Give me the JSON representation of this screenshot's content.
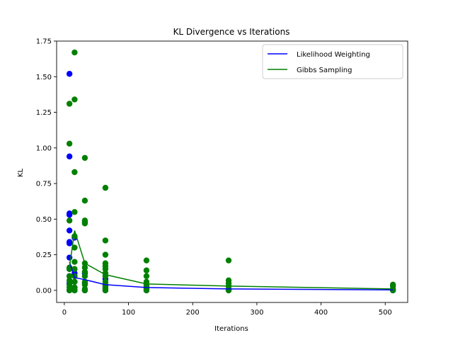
{
  "chart_data": {
    "type": "scatter",
    "title": "KL Divergence vs Iterations",
    "xlabel": "Iterations",
    "ylabel": "KL",
    "xlim": [
      -12,
      535
    ],
    "ylim": [
      -0.085,
      1.75
    ],
    "xticks": [
      0,
      100,
      200,
      300,
      400,
      500
    ],
    "xtick_labels": [
      "0",
      "100",
      "200",
      "300",
      "400",
      "500"
    ],
    "yticks": [
      0.0,
      0.25,
      0.5,
      0.75,
      1.0,
      1.25,
      1.5,
      1.75
    ],
    "ytick_labels": [
      "0.00",
      "0.25",
      "0.50",
      "0.75",
      "1.00",
      "1.25",
      "1.50",
      "1.75"
    ],
    "grid": false,
    "legend_position": "top-right",
    "series": [
      {
        "name": "Likelihood Weighting",
        "color": "#0000ff",
        "line": {
          "x": [
            8,
            16,
            32,
            64,
            128,
            256,
            512
          ],
          "y": [
            0.2,
            0.09,
            0.075,
            0.04,
            0.02,
            0.01,
            0.003
          ]
        },
        "points": {
          "x": [
            8,
            8,
            8,
            8,
            8,
            8,
            8,
            8,
            8,
            8,
            8,
            8,
            16,
            16,
            16,
            16,
            16,
            16,
            32,
            32,
            32,
            32,
            64,
            64,
            64,
            128,
            128,
            256,
            512
          ],
          "y": [
            1.52,
            0.94,
            0.54,
            0.53,
            0.42,
            0.34,
            0.33,
            0.23,
            0.15,
            0.1,
            0.05,
            0.0,
            0.37,
            0.12,
            0.1,
            0.06,
            0.02,
            0.0,
            0.48,
            0.12,
            0.05,
            0.0,
            0.08,
            0.03,
            0.0,
            0.02,
            0.0,
            0.0,
            0.0
          ]
        }
      },
      {
        "name": "Gibbs Sampling",
        "color": "#008000",
        "line": {
          "x": [
            8,
            16,
            32,
            64,
            128,
            256,
            512
          ],
          "y": [
            0.16,
            0.42,
            0.19,
            0.11,
            0.045,
            0.03,
            0.01
          ]
        },
        "points": {
          "x": [
            8,
            8,
            8,
            8,
            8,
            8,
            8,
            8,
            8,
            8,
            16,
            16,
            16,
            16,
            16,
            16,
            16,
            16,
            16,
            16,
            16,
            16,
            32,
            32,
            32,
            32,
            32,
            32,
            32,
            32,
            32,
            32,
            32,
            32,
            64,
            64,
            64,
            64,
            64,
            64,
            64,
            64,
            64,
            64,
            64,
            64,
            64,
            128,
            128,
            128,
            128,
            128,
            128,
            128,
            128,
            128,
            256,
            256,
            256,
            256,
            256,
            256,
            512,
            512,
            512,
            512
          ],
          "y": [
            1.31,
            1.03,
            0.49,
            0.16,
            0.15,
            0.1,
            0.07,
            0.04,
            0.02,
            0.0,
            1.67,
            1.34,
            0.83,
            0.55,
            0.38,
            0.3,
            0.2,
            0.15,
            0.1,
            0.06,
            0.02,
            0.0,
            0.93,
            0.63,
            0.49,
            0.47,
            0.19,
            0.16,
            0.13,
            0.1,
            0.06,
            0.04,
            0.01,
            0.0,
            0.72,
            0.35,
            0.25,
            0.19,
            0.17,
            0.15,
            0.12,
            0.1,
            0.06,
            0.04,
            0.02,
            0.01,
            0.0,
            0.21,
            0.14,
            0.1,
            0.06,
            0.04,
            0.03,
            0.02,
            0.01,
            0.0,
            0.21,
            0.07,
            0.05,
            0.03,
            0.01,
            0.0,
            0.04,
            0.03,
            0.01,
            0.0
          ]
        }
      }
    ]
  }
}
